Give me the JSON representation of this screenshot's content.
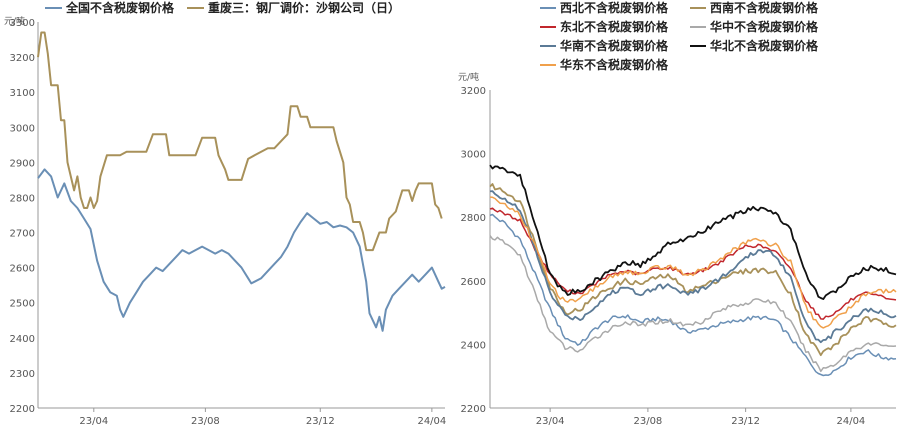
{
  "chart_data": [
    {
      "type": "line",
      "unit_label": "元/吨",
      "ylim": [
        2200,
        3300
      ],
      "y_ticks": [
        "2200",
        "2300",
        "2400",
        "2500",
        "2600",
        "2700",
        "2800",
        "2900",
        "3000",
        "3100",
        "3200",
        "3300"
      ],
      "x_ticks": [
        "23/04",
        "23/08",
        "23/12",
        "24/04"
      ],
      "grid": false,
      "legend_position": "top",
      "series": [
        {
          "name": "全国不含税废钢价格",
          "color": "#6a8fb5",
          "points": [
            [
              0,
              2855
            ],
            [
              2,
              2880
            ],
            [
              4,
              2860
            ],
            [
              6,
              2800
            ],
            [
              8,
              2840
            ],
            [
              10,
              2790
            ],
            [
              12,
              2770
            ],
            [
              14,
              2740
            ],
            [
              16,
              2710
            ],
            [
              18,
              2620
            ],
            [
              20,
              2560
            ],
            [
              22,
              2530
            ],
            [
              24,
              2520
            ],
            [
              25,
              2480
            ],
            [
              26,
              2460
            ],
            [
              28,
              2500
            ],
            [
              30,
              2530
            ],
            [
              32,
              2560
            ],
            [
              34,
              2580
            ],
            [
              36,
              2600
            ],
            [
              38,
              2590
            ],
            [
              40,
              2610
            ],
            [
              42,
              2630
            ],
            [
              44,
              2650
            ],
            [
              46,
              2640
            ],
            [
              48,
              2650
            ],
            [
              50,
              2660
            ],
            [
              52,
              2650
            ],
            [
              54,
              2640
            ],
            [
              56,
              2650
            ],
            [
              58,
              2640
            ],
            [
              60,
              2620
            ],
            [
              62,
              2600
            ],
            [
              64,
              2570
            ],
            [
              65,
              2555
            ],
            [
              66,
              2560
            ],
            [
              68,
              2570
            ],
            [
              70,
              2590
            ],
            [
              72,
              2610
            ],
            [
              74,
              2630
            ],
            [
              76,
              2660
            ],
            [
              78,
              2700
            ],
            [
              80,
              2730
            ],
            [
              82,
              2755
            ],
            [
              84,
              2740
            ],
            [
              86,
              2725
            ],
            [
              88,
              2730
            ],
            [
              90,
              2715
            ],
            [
              92,
              2720
            ],
            [
              94,
              2715
            ],
            [
              96,
              2700
            ],
            [
              98,
              2660
            ],
            [
              100,
              2560
            ],
            [
              101,
              2470
            ],
            [
              102,
              2450
            ],
            [
              103,
              2430
            ],
            [
              104,
              2460
            ],
            [
              105,
              2420
            ],
            [
              106,
              2480
            ],
            [
              108,
              2520
            ],
            [
              110,
              2540
            ],
            [
              112,
              2560
            ],
            [
              114,
              2580
            ],
            [
              116,
              2560
            ],
            [
              118,
              2580
            ],
            [
              120,
              2600
            ],
            [
              121,
              2580
            ],
            [
              122,
              2560
            ],
            [
              123,
              2540
            ],
            [
              124,
              2545
            ]
          ]
        },
        {
          "name": "重废三：钢厂调价：沙钢公司（日）",
          "color": "#a8915a",
          "points": [
            [
              0,
              3200
            ],
            [
              1,
              3270
            ],
            [
              2,
              3270
            ],
            [
              3,
              3210
            ],
            [
              4,
              3120
            ],
            [
              6,
              3120
            ],
            [
              7,
              3020
            ],
            [
              8,
              3020
            ],
            [
              9,
              2900
            ],
            [
              10,
              2860
            ],
            [
              11,
              2820
            ],
            [
              12,
              2860
            ],
            [
              13,
              2800
            ],
            [
              14,
              2770
            ],
            [
              15,
              2770
            ],
            [
              16,
              2800
            ],
            [
              17,
              2770
            ],
            [
              18,
              2790
            ],
            [
              19,
              2860
            ],
            [
              21,
              2920
            ],
            [
              23,
              2920
            ],
            [
              25,
              2920
            ],
            [
              27,
              2930
            ],
            [
              29,
              2930
            ],
            [
              31,
              2930
            ],
            [
              33,
              2930
            ],
            [
              35,
              2980
            ],
            [
              37,
              2980
            ],
            [
              39,
              2980
            ],
            [
              40,
              2920
            ],
            [
              42,
              2920
            ],
            [
              44,
              2920
            ],
            [
              46,
              2920
            ],
            [
              48,
              2920
            ],
            [
              50,
              2970
            ],
            [
              52,
              2970
            ],
            [
              54,
              2970
            ],
            [
              55,
              2920
            ],
            [
              56,
              2900
            ],
            [
              57,
              2880
            ],
            [
              58,
              2850
            ],
            [
              60,
              2850
            ],
            [
              62,
              2850
            ],
            [
              63,
              2880
            ],
            [
              64,
              2910
            ],
            [
              66,
              2920
            ],
            [
              68,
              2930
            ],
            [
              70,
              2940
            ],
            [
              72,
              2940
            ],
            [
              74,
              2960
            ],
            [
              76,
              2980
            ],
            [
              77,
              3060
            ],
            [
              79,
              3060
            ],
            [
              80,
              3030
            ],
            [
              82,
              3030
            ],
            [
              83,
              3000
            ],
            [
              85,
              3000
            ],
            [
              87,
              3000
            ],
            [
              89,
              3000
            ],
            [
              90,
              3000
            ],
            [
              91,
              2960
            ],
            [
              92,
              2930
            ],
            [
              93,
              2900
            ],
            [
              94,
              2800
            ],
            [
              95,
              2780
            ],
            [
              96,
              2730
            ],
            [
              98,
              2730
            ],
            [
              99,
              2700
            ],
            [
              100,
              2650
            ],
            [
              102,
              2650
            ],
            [
              104,
              2700
            ],
            [
              106,
              2700
            ],
            [
              107,
              2740
            ],
            [
              109,
              2760
            ],
            [
              110,
              2790
            ],
            [
              111,
              2820
            ],
            [
              113,
              2820
            ],
            [
              114,
              2790
            ],
            [
              115,
              2820
            ],
            [
              116,
              2840
            ],
            [
              118,
              2840
            ],
            [
              120,
              2840
            ],
            [
              121,
              2780
            ],
            [
              122,
              2770
            ],
            [
              123,
              2740
            ]
          ]
        }
      ]
    },
    {
      "type": "line",
      "unit_label": "元/吨",
      "ylim": [
        2200,
        3200
      ],
      "y_ticks": [
        "2200",
        "2400",
        "2600",
        "2800",
        "3000",
        "3200"
      ],
      "x_ticks": [
        "23/04",
        "23/08",
        "23/12",
        "24/04"
      ],
      "grid": false,
      "legend_position": "top",
      "series": [
        {
          "name": "西北不含税废钢价格",
          "color": "#6a8fb5",
          "style": "light",
          "base": [
            2810,
            2780,
            2730,
            2620,
            2510,
            2420,
            2400,
            2450,
            2480,
            2490,
            2470,
            2480,
            2475,
            2440,
            2445,
            2460,
            2470,
            2480,
            2485,
            2475,
            2420,
            2360,
            2300,
            2320,
            2360,
            2380,
            2360,
            2355
          ],
          "jitter": 7
        },
        {
          "name": "西南不含税废钢价格",
          "color": "#a8915a",
          "style": "dark",
          "base": [
            2900,
            2880,
            2850,
            2720,
            2580,
            2500,
            2510,
            2550,
            2580,
            2600,
            2590,
            2610,
            2615,
            2570,
            2580,
            2600,
            2620,
            2630,
            2635,
            2625,
            2560,
            2430,
            2370,
            2400,
            2450,
            2480,
            2470,
            2460
          ],
          "jitter": 8
        },
        {
          "name": "东北不含税废钢价格",
          "color": "#c1272d",
          "style": "light",
          "base": [
            2830,
            2810,
            2790,
            2700,
            2620,
            2570,
            2560,
            2590,
            2620,
            2630,
            2620,
            2640,
            2640,
            2620,
            2630,
            2650,
            2680,
            2710,
            2710,
            2690,
            2640,
            2540,
            2480,
            2500,
            2540,
            2560,
            2550,
            2540
          ],
          "jitter": 5
        },
        {
          "name": "华中不含税废钢价格",
          "color": "#a9a9a9",
          "style": "light",
          "base": [
            2740,
            2720,
            2680,
            2560,
            2440,
            2390,
            2380,
            2420,
            2450,
            2470,
            2460,
            2470,
            2475,
            2460,
            2470,
            2500,
            2520,
            2530,
            2540,
            2530,
            2470,
            2380,
            2320,
            2340,
            2380,
            2400,
            2400,
            2395
          ],
          "jitter": 7
        },
        {
          "name": "华南不含税废钢价格",
          "color": "#5b7a96",
          "style": "dark",
          "base": [
            2880,
            2860,
            2820,
            2700,
            2560,
            2490,
            2480,
            2520,
            2560,
            2580,
            2560,
            2580,
            2585,
            2560,
            2570,
            2600,
            2630,
            2670,
            2700,
            2680,
            2610,
            2470,
            2400,
            2440,
            2480,
            2510,
            2500,
            2490
          ],
          "jitter": 8
        },
        {
          "name": "华北不含税废钢价格",
          "color": "#111111",
          "style": "dark",
          "base": [
            2960,
            2950,
            2930,
            2780,
            2620,
            2560,
            2570,
            2600,
            2630,
            2660,
            2650,
            2680,
            2720,
            2730,
            2750,
            2780,
            2800,
            2820,
            2830,
            2810,
            2760,
            2620,
            2540,
            2570,
            2610,
            2640,
            2640,
            2620
          ],
          "jitter": 8
        },
        {
          "name": "华东不含税废钢价格",
          "color": "#f0a04b",
          "style": "light",
          "base": [
            2860,
            2840,
            2810,
            2710,
            2590,
            2530,
            2540,
            2580,
            2610,
            2630,
            2620,
            2640,
            2645,
            2620,
            2630,
            2660,
            2690,
            2720,
            2730,
            2710,
            2660,
            2520,
            2450,
            2480,
            2520,
            2560,
            2570,
            2565
          ],
          "jitter": 8
        }
      ]
    }
  ]
}
